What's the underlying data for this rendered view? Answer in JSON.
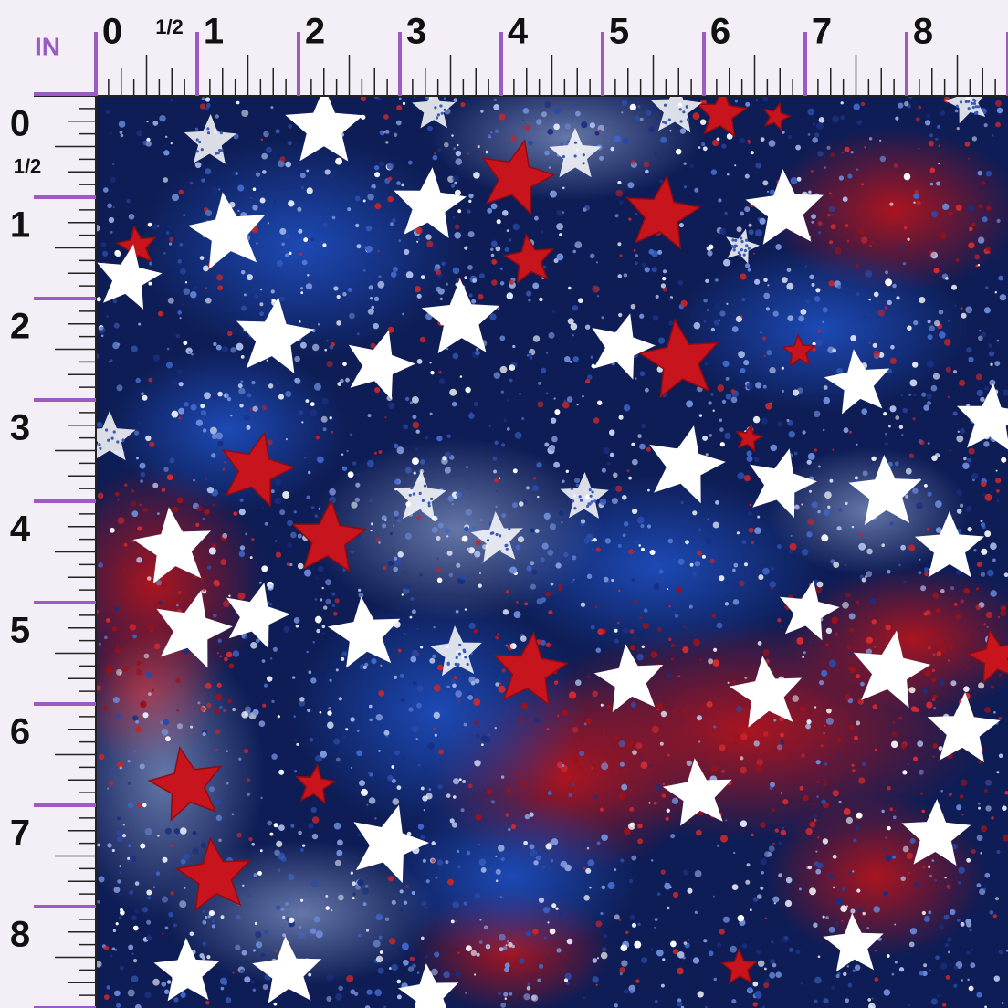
{
  "ruler": {
    "unit": "IN",
    "top": [
      "0",
      "1/2",
      "1",
      "2",
      "3",
      "4",
      "5",
      "6",
      "7",
      "8"
    ],
    "left": [
      "0",
      "1/2",
      "1",
      "2",
      "3",
      "4",
      "5",
      "6",
      "7",
      "8"
    ]
  }
}
